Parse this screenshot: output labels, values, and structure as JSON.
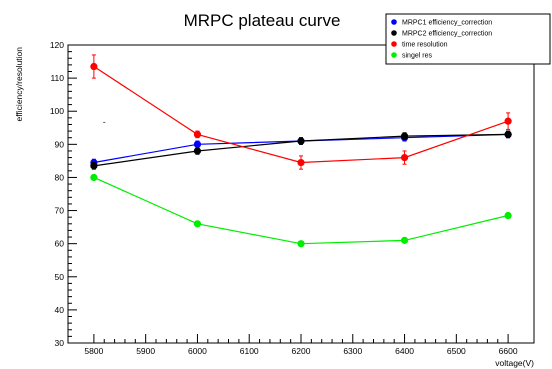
{
  "chart_data": {
    "type": "line",
    "title": "MRPC plateau curve",
    "xlabel": "voltage(V)",
    "ylabel": "efficiency/resolution",
    "xlim": [
      5750,
      6650
    ],
    "ylim": [
      30,
      120
    ],
    "x_ticks": [
      5800,
      5900,
      6000,
      6100,
      6200,
      6300,
      6400,
      6500,
      6600
    ],
    "y_ticks": [
      30,
      40,
      50,
      60,
      70,
      80,
      90,
      100,
      110,
      120
    ],
    "grid": false,
    "legend_position": "top-right",
    "series": [
      {
        "name": "MRPC1 efficiency_correction",
        "color": "#0000ff",
        "x": [
          5800,
          6000,
          6200,
          6400,
          6600
        ],
        "y": [
          84.5,
          90,
          91,
          92,
          93
        ],
        "err": [
          1,
          1,
          1,
          1,
          1
        ]
      },
      {
        "name": "MRPC2 efficiency_correction",
        "color": "#000000",
        "x": [
          5800,
          6000,
          6200,
          6400,
          6600
        ],
        "y": [
          83.5,
          88,
          91,
          92.5,
          93
        ],
        "err": [
          1,
          1,
          1,
          1,
          1
        ]
      },
      {
        "name": "time resolution",
        "color": "#ff0000",
        "x": [
          5800,
          6000,
          6200,
          6400,
          6600
        ],
        "y": [
          113.5,
          93,
          84.5,
          86,
          97
        ],
        "err": [
          3.5,
          1,
          2,
          2,
          2.5
        ]
      },
      {
        "name": "singel res",
        "color": "#00ee00",
        "x": [
          5800,
          6000,
          6200,
          6400,
          6600
        ],
        "y": [
          80,
          66,
          60,
          61,
          68.5
        ],
        "err": [
          0,
          0,
          0,
          0,
          0
        ]
      }
    ],
    "annotations": [
      {
        "text": "-",
        "x": 5820,
        "y": 96
      }
    ]
  }
}
